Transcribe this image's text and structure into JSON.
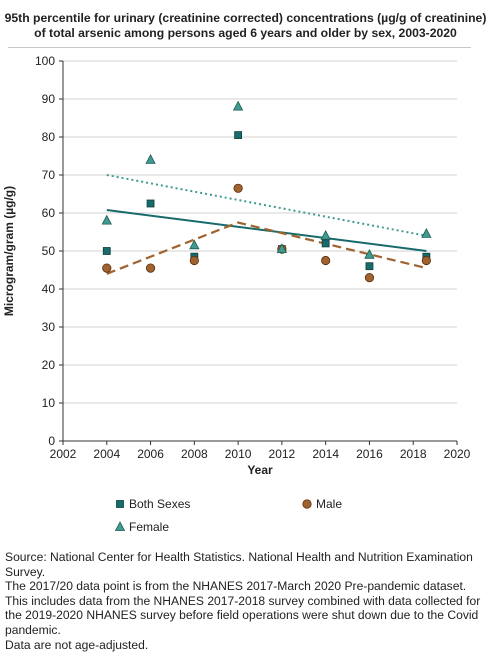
{
  "chart_data": {
    "type": "scatter",
    "title": "95th percentile for urinary (creatinine corrected) concentrations (µg/g of creatinine) of total arsenic among persons aged 6 years and older by sex, 2003-2020",
    "xlabel": "Year",
    "ylabel": "Microgram/gram (µg/g)",
    "xlim": [
      2002,
      2020
    ],
    "ylim": [
      0,
      100
    ],
    "xticks": [
      2002,
      2004,
      2006,
      2008,
      2010,
      2012,
      2014,
      2016,
      2018,
      2020
    ],
    "yticks": [
      0,
      10,
      20,
      30,
      40,
      50,
      60,
      70,
      80,
      90,
      100
    ],
    "grid": "horizontal",
    "legend_position": "bottom",
    "series": [
      {
        "name": "Both Sexes",
        "marker": "square",
        "color": "#176b6b",
        "x": [
          2004,
          2006,
          2008,
          2010,
          2012,
          2014,
          2016,
          2018.6
        ],
        "y": [
          50,
          62.5,
          48.5,
          80.5,
          50.5,
          52,
          46,
          48.5
        ],
        "trend": {
          "style": "solid",
          "x": [
            2004,
            2018.6
          ],
          "y": [
            60.8,
            50
          ]
        }
      },
      {
        "name": "Male",
        "marker": "circle",
        "color": "#a0622e",
        "x": [
          2004,
          2006,
          2008,
          2010,
          2012,
          2014,
          2016,
          2018.6
        ],
        "y": [
          45.5,
          45.5,
          47.5,
          66.5,
          50.5,
          47.5,
          43,
          47.5
        ],
        "trend": {
          "style": "dashed",
          "x": [
            2004,
            2010,
            2018.6
          ],
          "y": [
            44,
            57.5,
            45.5
          ]
        }
      },
      {
        "name": "Female",
        "marker": "triangle",
        "color": "#3f9b8f",
        "x": [
          2004,
          2006,
          2008,
          2010,
          2012,
          2014,
          2016,
          2018.6
        ],
        "y": [
          58,
          74,
          51.5,
          88,
          50.5,
          54,
          49,
          54.5
        ],
        "trend": {
          "style": "dotted",
          "x": [
            2004,
            2018.6
          ],
          "y": [
            70,
            54
          ]
        }
      }
    ]
  },
  "source": [
    "Source: National Center for Health Statistics. National Health and Nutrition Examination Survey.",
    "The 2017/20 data point is from the NHANES 2017-March 2020 Pre-pandemic dataset. This includes data from the NHANES 2017-2018 survey combined with data collected for the 2019-2020 NHANES survey before field operations were shut down due to the Covid pandemic.",
    "Data are not age-adjusted."
  ]
}
